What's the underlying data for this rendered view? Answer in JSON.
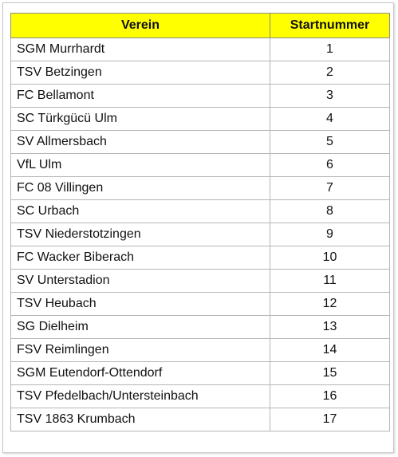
{
  "table": {
    "headers": {
      "club": "Verein",
      "number": "Startnummer"
    },
    "header_bg": "#ffff00",
    "rows": [
      {
        "club": "SGM Murrhardt",
        "number": "1"
      },
      {
        "club": "TSV Betzingen",
        "number": "2"
      },
      {
        "club": "FC Bellamont",
        "number": "3"
      },
      {
        "club": "SC Türkgücü Ulm",
        "number": "4"
      },
      {
        "club": "SV Allmersbach",
        "number": "5"
      },
      {
        "club": "VfL Ulm",
        "number": "6"
      },
      {
        "club": "FC 08 Villingen",
        "number": "7"
      },
      {
        "club": "SC Urbach",
        "number": "8"
      },
      {
        "club": "TSV Niederstotzingen",
        "number": "9"
      },
      {
        "club": "FC Wacker Biberach",
        "number": "10"
      },
      {
        "club": "SV Unterstadion",
        "number": "11"
      },
      {
        "club": "TSV Heubach",
        "number": "12"
      },
      {
        "club": "SG Dielheim",
        "number": "13"
      },
      {
        "club": "FSV Reimlingen",
        "number": "14"
      },
      {
        "club": "SGM Eutendorf-Ottendorf",
        "number": "15"
      },
      {
        "club": "TSV Pfedelbach/Untersteinbach",
        "number": "16"
      },
      {
        "club": "TSV 1863 Krumbach",
        "number": "17"
      }
    ]
  }
}
